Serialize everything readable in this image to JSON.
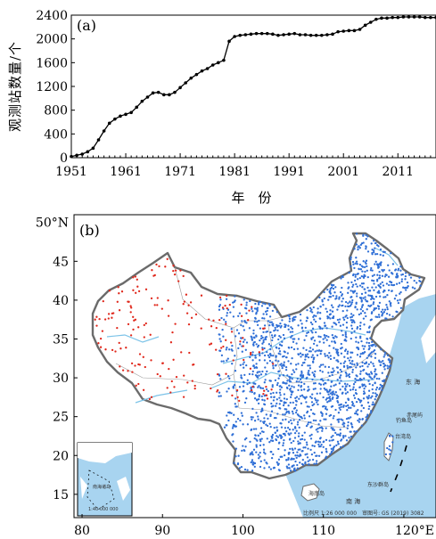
{
  "colors": {
    "line": "#000000",
    "ocean": "#a8d4f0",
    "land": "#ffffff",
    "border": "#6b6b6b",
    "province": "#999999",
    "river": "#7cc3e8",
    "station_east": "#2f6fd6",
    "station_west": "#e0271b"
  },
  "chart_data": [
    {
      "type": "line",
      "panel_label": "(a)",
      "xlabel": "年　份",
      "ylabel": "观测站数量/个",
      "xlim": [
        1951,
        2018
      ],
      "ylim": [
        0,
        2400
      ],
      "xticks": [
        1951,
        1961,
        1971,
        1981,
        1991,
        2001,
        2011
      ],
      "yticks": [
        0,
        400,
        800,
        1200,
        1600,
        2000,
        2400
      ],
      "grid": false,
      "legend": "none",
      "marker": "dot",
      "series": [
        {
          "x": [
            1951,
            1952,
            1953,
            1954,
            1955,
            1956,
            1957,
            1958,
            1959,
            1960,
            1961,
            1962,
            1963,
            1964,
            1965,
            1966,
            1967,
            1968,
            1969,
            1970,
            1971,
            1972,
            1973,
            1974,
            1975,
            1976,
            1977,
            1978,
            1979,
            1980,
            1981,
            1982,
            1983,
            1984,
            1985,
            1986,
            1987,
            1988,
            1989,
            1990,
            1991,
            1992,
            1993,
            1994,
            1995,
            1996,
            1997,
            1998,
            1999,
            2000,
            2001,
            2002,
            2003,
            2004,
            2005,
            2006,
            2007,
            2008,
            2009,
            2010,
            2011,
            2012,
            2013,
            2014,
            2015,
            2016,
            2017,
            2018
          ],
          "y": [
            20,
            40,
            60,
            100,
            160,
            300,
            450,
            580,
            650,
            700,
            730,
            760,
            850,
            950,
            1020,
            1090,
            1100,
            1060,
            1060,
            1100,
            1180,
            1260,
            1340,
            1400,
            1460,
            1500,
            1560,
            1600,
            1640,
            1960,
            2040,
            2060,
            2070,
            2080,
            2090,
            2090,
            2090,
            2080,
            2060,
            2070,
            2080,
            2090,
            2070,
            2070,
            2060,
            2060,
            2060,
            2070,
            2080,
            2120,
            2130,
            2140,
            2140,
            2160,
            2230,
            2280,
            2330,
            2350,
            2350,
            2360,
            2360,
            2370,
            2370,
            2370,
            2370,
            2360,
            2360,
            2360
          ]
        }
      ]
    },
    {
      "type": "scatter",
      "panel_label": "(b)",
      "xlim": [
        79,
        124
      ],
      "ylim": [
        12,
        51
      ],
      "xticks": [
        80,
        90,
        100,
        110
      ],
      "xtick_labels": [
        "80",
        "90",
        "100",
        "110"
      ],
      "xtick_last_label": "120°E",
      "yticks": [
        15,
        20,
        25,
        30,
        35,
        40,
        45
      ],
      "ytick_labels": [
        "15",
        "20",
        "25",
        "30",
        "35",
        "40",
        "45"
      ],
      "ytick_top_label": "50°N",
      "inset_scale": "1:40 000 000",
      "scale_note": "比例尺 1:26 000 000　审图号: GS (2019) 3082",
      "labels_sea": [
        "东 海",
        "南 海"
      ],
      "labels_island": [
        "台湾岛",
        "海南岛",
        "钓鱼岛",
        "赤尾屿",
        "东沙群岛"
      ],
      "inset_labels": [
        "南海诸岛"
      ],
      "station_groups": [
        {
          "name": "east",
          "count": 1900,
          "lon_range": [
            97,
            123
          ],
          "lat_range": [
            18,
            53
          ]
        },
        {
          "name": "west",
          "count": 180,
          "lon_range": [
            74,
            104
          ],
          "lat_range": [
            27,
            49
          ]
        }
      ]
    }
  ]
}
